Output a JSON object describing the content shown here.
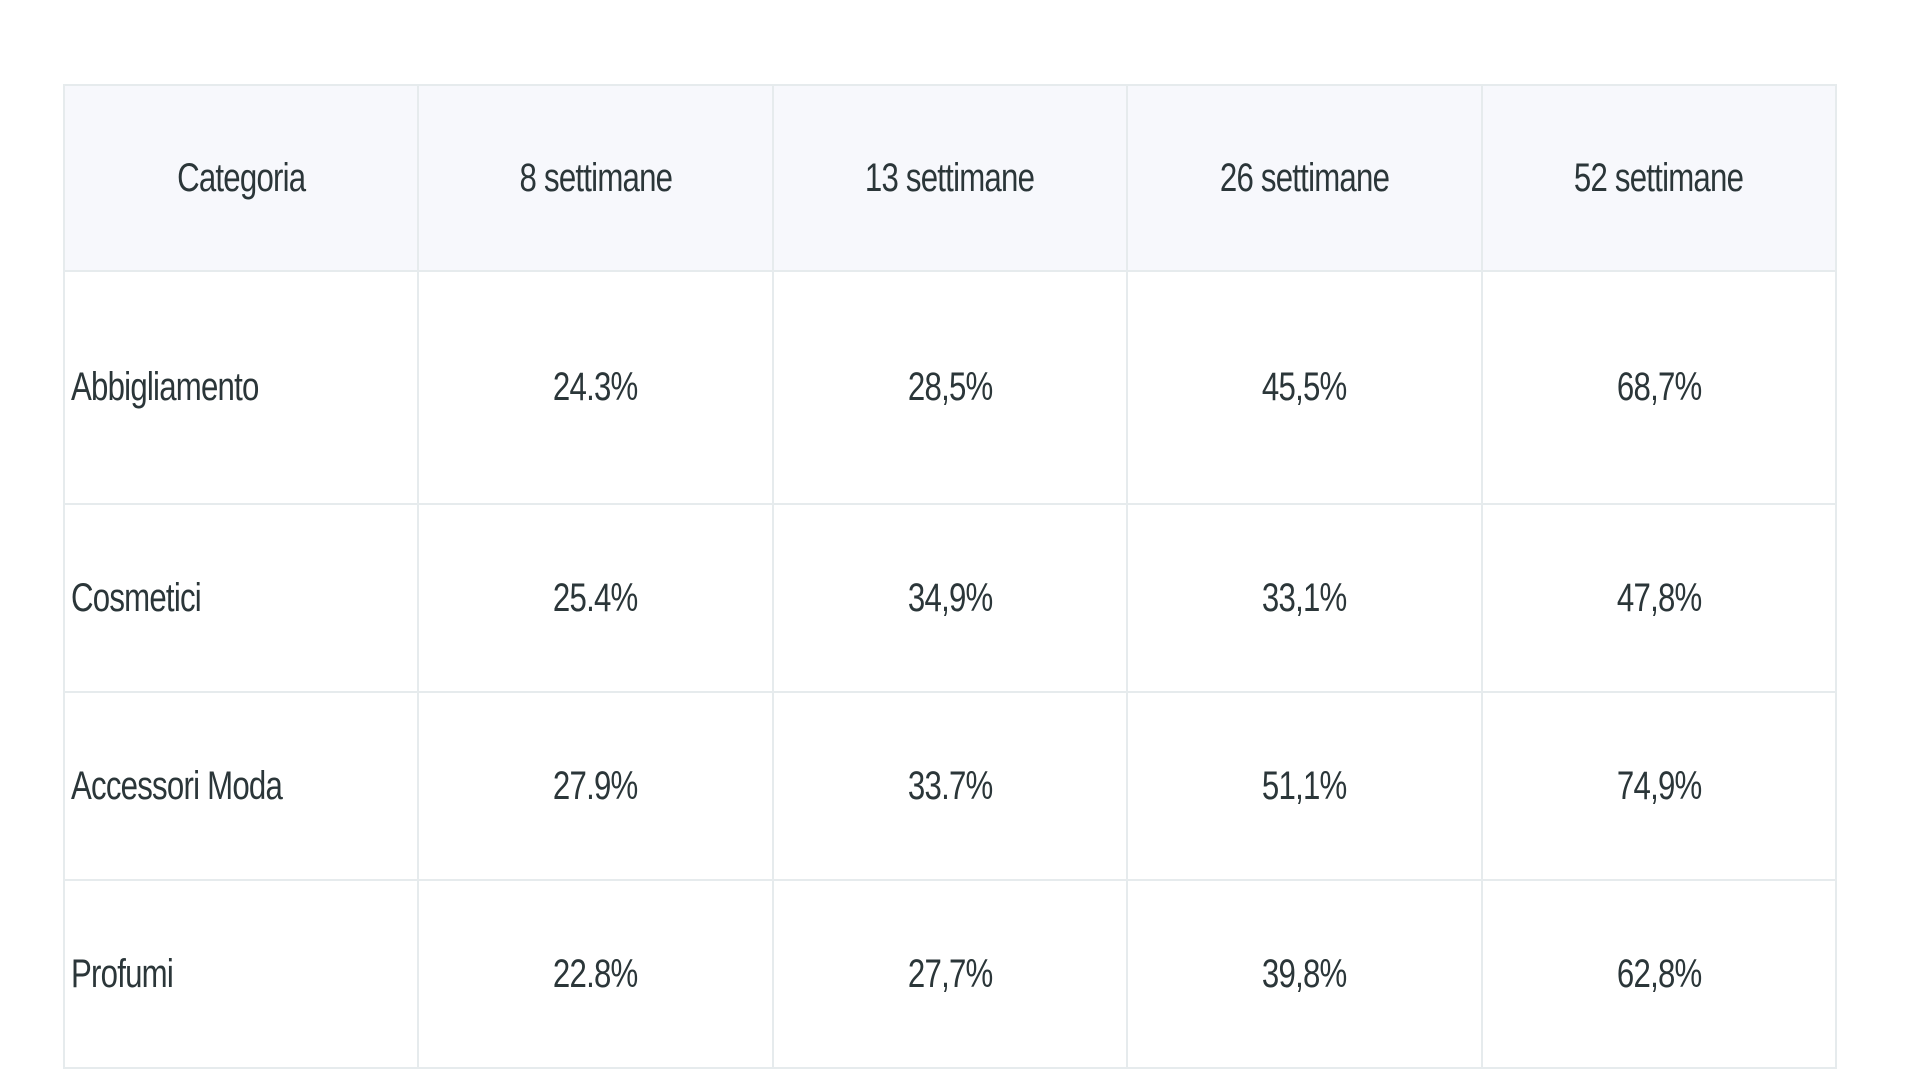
{
  "table": {
    "headers": [
      "Categoria",
      "8 settimane",
      "13 settimane",
      "26 settimane",
      "52 settimane"
    ],
    "rows": [
      {
        "category": "Abbigliamento",
        "values": [
          "24.3%",
          "28,5%",
          "45,5%",
          "68,7%"
        ]
      },
      {
        "category": "Cosmetici",
        "values": [
          "25.4%",
          "34,9%",
          "33,1%",
          "47,8%"
        ]
      },
      {
        "category": "Accessori Moda",
        "values": [
          "27.9%",
          "33.7%",
          "51,1%",
          "74,9%"
        ]
      },
      {
        "category": "Profumi",
        "values": [
          "22.8%",
          "27,7%",
          "39,8%",
          "62,8%"
        ]
      }
    ]
  }
}
